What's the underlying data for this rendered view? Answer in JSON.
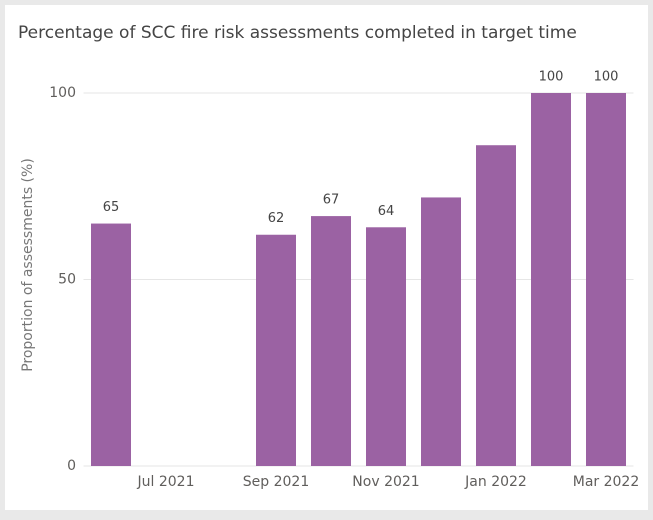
{
  "chart_data": {
    "type": "bar",
    "title": "Percentage of SCC fire risk assessments completed in target time",
    "y_label": "Proportion of assessments (%)",
    "categories": [
      null,
      "Jul 2021",
      null,
      "Sep 2021",
      null,
      "Nov 2021",
      null,
      "Jan 2022",
      null,
      "Mar 2022"
    ],
    "values": [
      65,
      null,
      null,
      62,
      67,
      64,
      72,
      86,
      100,
      100
    ],
    "value_labels": [
      "65",
      null,
      null,
      "62",
      "67",
      "64",
      null,
      null,
      "100",
      "100"
    ],
    "color": "#9b62a3",
    "ylim": [
      0,
      100
    ],
    "yticks": [
      0,
      50,
      100
    ],
    "grid": true
  }
}
